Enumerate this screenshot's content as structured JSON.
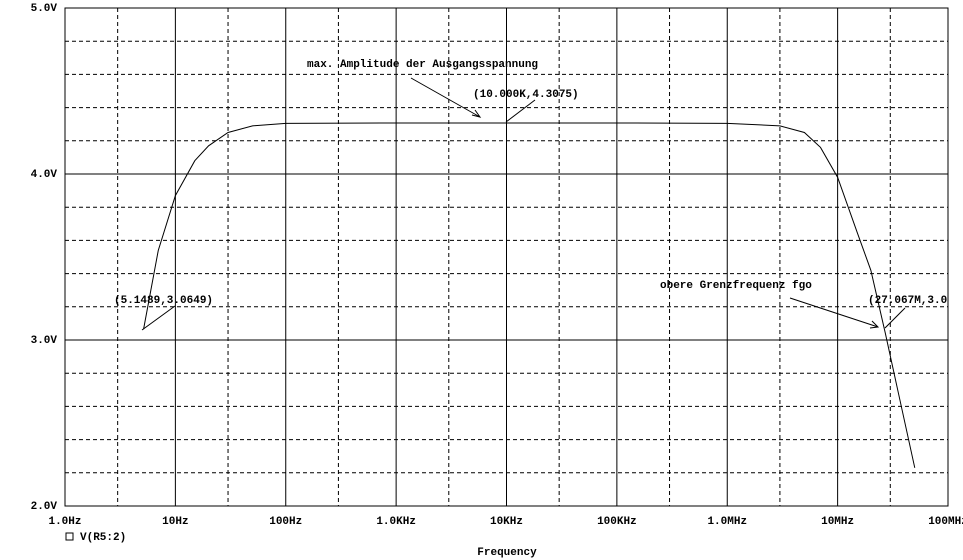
{
  "chart_data": {
    "type": "line",
    "x_label": "Frequency",
    "log_x": true,
    "grid": true,
    "xlim": [
      1,
      100000000
    ],
    "xticks": [
      {
        "value": 1,
        "label": "1.0Hz"
      },
      {
        "value": 10,
        "label": "10Hz"
      },
      {
        "value": 100,
        "label": "100Hz"
      },
      {
        "value": 1000,
        "label": "1.0KHz"
      },
      {
        "value": 10000,
        "label": "10KHz"
      },
      {
        "value": 100000,
        "label": "100KHz"
      },
      {
        "value": 1000000,
        "label": "1.0MHz"
      },
      {
        "value": 10000000,
        "label": "10MHz"
      },
      {
        "value": 100000000,
        "label": "100MHz"
      }
    ],
    "minor_xticks": [
      3,
      30,
      300,
      3000,
      30000,
      300000,
      3000000,
      30000000
    ],
    "ylim": [
      2,
      5
    ],
    "yticks": [
      {
        "value": 2,
        "label": "2.0V"
      },
      {
        "value": 3,
        "label": "3.0V"
      },
      {
        "value": 4,
        "label": "4.0V"
      },
      {
        "value": 5,
        "label": "5.0V"
      }
    ],
    "minor_yticks": [
      2.2,
      2.4,
      2.6,
      2.8,
      3.2,
      3.4,
      3.6,
      3.8,
      4.2,
      4.4,
      4.6,
      4.8
    ],
    "x": [
      5.1489,
      7,
      10,
      15,
      20,
      30,
      50,
      100,
      1000,
      10000,
      100000,
      1000000,
      3000000,
      5000000,
      7000000,
      10000000,
      15000000,
      20000000,
      27067000,
      35000000,
      50000000
    ],
    "series": [
      {
        "name": "V(R5:2)",
        "color": "#000000",
        "values": [
          3.0649,
          3.54,
          3.87,
          4.08,
          4.17,
          4.25,
          4.29,
          4.305,
          4.3075,
          4.3075,
          4.3075,
          4.305,
          4.29,
          4.25,
          4.16,
          3.98,
          3.65,
          3.42,
          3.04,
          2.7,
          2.23
        ]
      }
    ],
    "annotations": [
      "max. Amplitude der Ausgangsspannung",
      "(10.000K,4.3075)",
      "(5.1489,3.0649)",
      "obere Grenzfrequenz fgo",
      "(27.067M,3.0"
    ]
  }
}
